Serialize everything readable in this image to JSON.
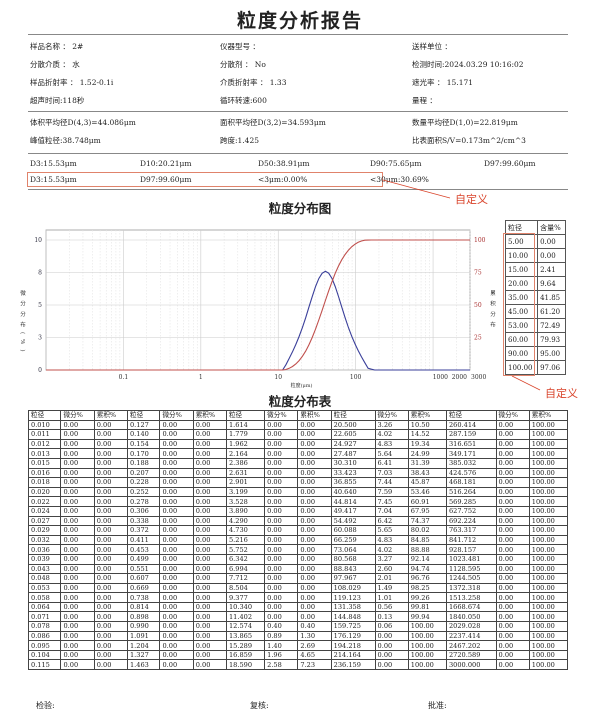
{
  "title": "粒度分析报告",
  "info": [
    [
      "样品名称 ： 2#",
      "仪器型号 ：",
      "送样单位 ："
    ],
    [
      "分散介质 ： 水",
      "分散剂 ： No",
      "检测时间:2024.03.29 10:16:02"
    ],
    [
      "样品折射率 ： 1.52-0.1i",
      "介质折射率 ： 1.33",
      "遮光率 ： 15.171"
    ],
    [
      "超声时间:118秒",
      "循环转速:600",
      "量程 ："
    ]
  ],
  "stats": [
    [
      "体积平均径D(4,3)=44.086μm",
      "面积平均径D(3,2)=34.593μm",
      "数量平均径D(1,0)=22.819μm"
    ],
    [
      "峰值粒径:38.748μm",
      "跨度:1.425",
      "比表面积S/V=0.173m^2/cm^3"
    ]
  ],
  "d_values": [
    "D3:15.53μm",
    "D10:20.21μm",
    "D50:38.91μm",
    "D90:75.65μm",
    "D97:99.60μm"
  ],
  "custom_values": [
    "D3:15.53μm",
    "D97:99.60μm",
    "<3μm:0.00%",
    "<30μm:30.69%"
  ],
  "annotation_label": "自定义",
  "chart_title": "粒度分布图",
  "chart_data": {
    "type": "line",
    "xlabel": "粒度(μm)",
    "ylabel_left": "微分分布(%)",
    "ylabel_right": "累积分布",
    "x_scale": "log",
    "xlim": [
      0.01,
      3000
    ],
    "x_ticks": [
      "0.1",
      "1",
      "10",
      "100",
      "1000",
      "2000",
      "3000"
    ],
    "ylim_left": [
      0,
      10
    ],
    "y_ticks_left": [
      "0",
      "3",
      "5",
      "8",
      "10"
    ],
    "ylim_right": [
      0,
      100
    ],
    "y_ticks_right": [
      "25",
      "50",
      "75",
      "100"
    ],
    "grid": true,
    "series": [
      {
        "axis": "left",
        "color": "#3a3f9a",
        "x": [
          8.504,
          9.377,
          10.34,
          11.402,
          12.574,
          13.865,
          15.289,
          16.859,
          18.59,
          20.5,
          22.605,
          24.927,
          27.487,
          30.31,
          33.423,
          36.855,
          40.64,
          44.814,
          49.417,
          54.492,
          60.088,
          66.259,
          73.064,
          80.568,
          88.843,
          97.967,
          108.029,
          119.123,
          131.358,
          144.848,
          159.725,
          176.129,
          3000
        ],
        "y": [
          0,
          0,
          0,
          0,
          0.4,
          0.89,
          1.4,
          1.96,
          2.58,
          3.26,
          4.02,
          4.83,
          5.64,
          6.41,
          7.03,
          7.44,
          7.59,
          7.45,
          7.04,
          6.42,
          5.65,
          4.83,
          4.02,
          3.27,
          2.6,
          2.01,
          1.49,
          1.01,
          0.56,
          0.13,
          0.06,
          0,
          0
        ]
      },
      {
        "axis": "right",
        "color": "#c0504d",
        "x": [
          0.01,
          11.402,
          12.574,
          13.865,
          15.289,
          16.859,
          18.59,
          20.5,
          22.605,
          24.927,
          27.487,
          30.31,
          33.423,
          36.855,
          40.64,
          44.814,
          49.417,
          54.492,
          60.088,
          66.259,
          73.064,
          80.568,
          88.843,
          97.967,
          108.029,
          119.123,
          131.358,
          144.848,
          159.725,
          3000
        ],
        "y": [
          0,
          0,
          0.4,
          1.3,
          2.69,
          4.65,
          7.23,
          10.5,
          14.52,
          19.34,
          24.99,
          31.39,
          38.43,
          45.87,
          53.46,
          60.91,
          67.95,
          74.37,
          80.02,
          84.85,
          88.88,
          92.14,
          94.74,
          96.76,
          98.25,
          99.26,
          99.81,
          99.94,
          100,
          100
        ]
      }
    ]
  },
  "side_table": {
    "headers": [
      "粒径",
      "含量%"
    ],
    "rows": [
      [
        "5.00",
        "0.00"
      ],
      [
        "10.00",
        "0.00"
      ],
      [
        "15.00",
        "2.41"
      ],
      [
        "20.00",
        "9.64"
      ],
      [
        "35.00",
        "41.85"
      ],
      [
        "45.00",
        "61.20"
      ],
      [
        "53.00",
        "72.49"
      ],
      [
        "60.00",
        "79.93"
      ],
      [
        "90.00",
        "95.00"
      ],
      [
        "100.00",
        "97.06"
      ]
    ]
  },
  "table_title": "粒度分布表",
  "table": {
    "headers": [
      "粒径",
      "微分%",
      "累积%",
      "粒径",
      "微分%",
      "累积%",
      "粒径",
      "微分%",
      "累积%",
      "粒径",
      "微分%",
      "累积%",
      "粒径",
      "微分%",
      "累积%"
    ],
    "rows": [
      [
        "0.010",
        "0.00",
        "0.00",
        "0.127",
        "0.00",
        "0.00",
        "1.614",
        "0.00",
        "0.00",
        "20.500",
        "3.26",
        "10.50",
        "260.414",
        "0.00",
        "100.00"
      ],
      [
        "0.011",
        "0.00",
        "0.00",
        "0.140",
        "0.00",
        "0.00",
        "1.779",
        "0.00",
        "0.00",
        "22.605",
        "4.02",
        "14.52",
        "287.159",
        "0.00",
        "100.00"
      ],
      [
        "0.012",
        "0.00",
        "0.00",
        "0.154",
        "0.00",
        "0.00",
        "1.962",
        "0.00",
        "0.00",
        "24.927",
        "4.83",
        "19.34",
        "316.651",
        "0.00",
        "100.00"
      ],
      [
        "0.013",
        "0.00",
        "0.00",
        "0.170",
        "0.00",
        "0.00",
        "2.164",
        "0.00",
        "0.00",
        "27.487",
        "5.64",
        "24.99",
        "349.171",
        "0.00",
        "100.00"
      ],
      [
        "0.015",
        "0.00",
        "0.00",
        "0.188",
        "0.00",
        "0.00",
        "2.386",
        "0.00",
        "0.00",
        "30.310",
        "6.41",
        "31.39",
        "385.032",
        "0.00",
        "100.00"
      ],
      [
        "0.016",
        "0.00",
        "0.00",
        "0.207",
        "0.00",
        "0.00",
        "2.631",
        "0.00",
        "0.00",
        "33.423",
        "7.03",
        "38.43",
        "424.576",
        "0.00",
        "100.00"
      ],
      [
        "0.018",
        "0.00",
        "0.00",
        "0.228",
        "0.00",
        "0.00",
        "2.901",
        "0.00",
        "0.00",
        "36.855",
        "7.44",
        "45.87",
        "468.181",
        "0.00",
        "100.00"
      ],
      [
        "0.020",
        "0.00",
        "0.00",
        "0.252",
        "0.00",
        "0.00",
        "3.199",
        "0.00",
        "0.00",
        "40.640",
        "7.59",
        "53.46",
        "516.264",
        "0.00",
        "100.00"
      ],
      [
        "0.022",
        "0.00",
        "0.00",
        "0.278",
        "0.00",
        "0.00",
        "3.528",
        "0.00",
        "0.00",
        "44.814",
        "7.45",
        "60.91",
        "569.285",
        "0.00",
        "100.00"
      ],
      [
        "0.024",
        "0.00",
        "0.00",
        "0.306",
        "0.00",
        "0.00",
        "3.890",
        "0.00",
        "0.00",
        "49.417",
        "7.04",
        "67.95",
        "627.752",
        "0.00",
        "100.00"
      ],
      [
        "0.027",
        "0.00",
        "0.00",
        "0.338",
        "0.00",
        "0.00",
        "4.290",
        "0.00",
        "0.00",
        "54.492",
        "6.42",
        "74.37",
        "692.224",
        "0.00",
        "100.00"
      ],
      [
        "0.029",
        "0.00",
        "0.00",
        "0.372",
        "0.00",
        "0.00",
        "4.730",
        "0.00",
        "0.00",
        "60.088",
        "5.65",
        "80.02",
        "763.317",
        "0.00",
        "100.00"
      ],
      [
        "0.032",
        "0.00",
        "0.00",
        "0.411",
        "0.00",
        "0.00",
        "5.216",
        "0.00",
        "0.00",
        "66.259",
        "4.83",
        "84.85",
        "841.712",
        "0.00",
        "100.00"
      ],
      [
        "0.036",
        "0.00",
        "0.00",
        "0.453",
        "0.00",
        "0.00",
        "5.752",
        "0.00",
        "0.00",
        "73.064",
        "4.02",
        "88.88",
        "928.157",
        "0.00",
        "100.00"
      ],
      [
        "0.039",
        "0.00",
        "0.00",
        "0.499",
        "0.00",
        "0.00",
        "6.342",
        "0.00",
        "0.00",
        "80.568",
        "3.27",
        "92.14",
        "1023.481",
        "0.00",
        "100.00"
      ],
      [
        "0.043",
        "0.00",
        "0.00",
        "0.551",
        "0.00",
        "0.00",
        "6.994",
        "0.00",
        "0.00",
        "88.843",
        "2.60",
        "94.74",
        "1128.595",
        "0.00",
        "100.00"
      ],
      [
        "0.048",
        "0.00",
        "0.00",
        "0.607",
        "0.00",
        "0.00",
        "7.712",
        "0.00",
        "0.00",
        "97.967",
        "2.01",
        "96.76",
        "1244.505",
        "0.00",
        "100.00"
      ],
      [
        "0.053",
        "0.00",
        "0.00",
        "0.669",
        "0.00",
        "0.00",
        "8.504",
        "0.00",
        "0.00",
        "108.029",
        "1.49",
        "98.25",
        "1372.318",
        "0.00",
        "100.00"
      ],
      [
        "0.058",
        "0.00",
        "0.00",
        "0.738",
        "0.00",
        "0.00",
        "9.377",
        "0.00",
        "0.00",
        "119.123",
        "1.01",
        "99.26",
        "1513.258",
        "0.00",
        "100.00"
      ],
      [
        "0.064",
        "0.00",
        "0.00",
        "0.814",
        "0.00",
        "0.00",
        "10.340",
        "0.00",
        "0.00",
        "131.358",
        "0.56",
        "99.81",
        "1668.674",
        "0.00",
        "100.00"
      ],
      [
        "0.071",
        "0.00",
        "0.00",
        "0.898",
        "0.00",
        "0.00",
        "11.402",
        "0.00",
        "0.00",
        "144.848",
        "0.13",
        "99.94",
        "1840.050",
        "0.00",
        "100.00"
      ],
      [
        "0.078",
        "0.00",
        "0.00",
        "0.990",
        "0.00",
        "0.00",
        "12.574",
        "0.40",
        "0.40",
        "159.725",
        "0.06",
        "100.00",
        "2029.028",
        "0.00",
        "100.00"
      ],
      [
        "0.086",
        "0.00",
        "0.00",
        "1.091",
        "0.00",
        "0.00",
        "13.865",
        "0.89",
        "1.30",
        "176.129",
        "0.00",
        "100.00",
        "2237.414",
        "0.00",
        "100.00"
      ],
      [
        "0.095",
        "0.00",
        "0.00",
        "1.204",
        "0.00",
        "0.00",
        "15.289",
        "1.40",
        "2.69",
        "194.218",
        "0.00",
        "100.00",
        "2467.202",
        "0.00",
        "100.00"
      ],
      [
        "0.104",
        "0.00",
        "0.00",
        "1.327",
        "0.00",
        "0.00",
        "16.859",
        "1.96",
        "4.65",
        "214.164",
        "0.00",
        "100.00",
        "2720.589",
        "0.00",
        "100.00"
      ],
      [
        "0.115",
        "0.00",
        "0.00",
        "1.463",
        "0.00",
        "0.00",
        "18.590",
        "2.58",
        "7.23",
        "236.159",
        "0.00",
        "100.00",
        "3000.000",
        "0.00",
        "100.00"
      ]
    ]
  },
  "footer": [
    "检验:",
    "复核:",
    "批准:"
  ]
}
